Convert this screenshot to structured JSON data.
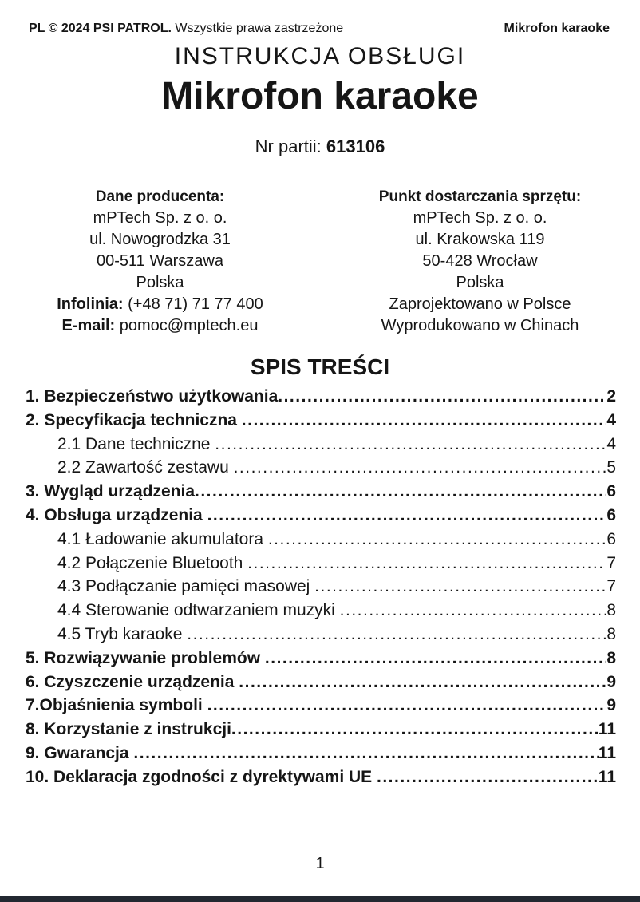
{
  "header": {
    "copyright_bold": "PL © 2024 PSI PATROL.",
    "copyright_rest": "Wszystkie prawa zastrzeżone",
    "product_name": "Mikrofon karaoke"
  },
  "titles": {
    "document_type": "INSTRUKCJA OBSŁUGI",
    "product_title": "Mikrofon karaoke",
    "batch_label": "Nr partii:",
    "batch_value": "613106"
  },
  "manufacturer": {
    "heading": "Dane producenta:",
    "lines": [
      "mPTech Sp. z o. o.",
      "ul. Nowogrodzka 31",
      "00-511 Warszawa",
      "Polska"
    ],
    "hotline_label": "Infolinia:",
    "hotline_value": "(+48 71) 71 77 400",
    "email_label": "E-mail:",
    "email_value": "pomoc@mptech.eu"
  },
  "delivery": {
    "heading": "Punkt dostarczania sprzętu:",
    "lines": [
      "mPTech Sp. z o. o.",
      "ul. Krakowska 119",
      "50-428 Wrocław",
      "Polska",
      "Zaprojektowano w Polsce",
      "Wyprodukowano w Chinach"
    ]
  },
  "toc": {
    "heading": "SPIS TREŚCI",
    "items": [
      {
        "label": "1. Bezpieczeństwo użytkowania",
        "page": "2",
        "level": 1
      },
      {
        "label": "2. Specyfikacja techniczna ",
        "page": "4",
        "level": 1
      },
      {
        "label": "2.1 Dane techniczne ",
        "page": "4",
        "level": 2
      },
      {
        "label": "2.2 Zawartość zestawu ",
        "page": "5",
        "level": 2
      },
      {
        "label": "3. Wygląd urządzenia",
        "page": "6",
        "level": 1
      },
      {
        "label": "4. Obsługa urządzenia ",
        "page": "6",
        "level": 1
      },
      {
        "label": "4.1 Ładowanie akumulatora ",
        "page": "6",
        "level": 2
      },
      {
        "label": "4.2 Połączenie Bluetooth ",
        "page": "7",
        "level": 2
      },
      {
        "label": "4.3 Podłączanie pamięci masowej ",
        "page": "7",
        "level": 2
      },
      {
        "label": "4.4 Sterowanie odtwarzaniem muzyki ",
        "page": "8",
        "level": 2
      },
      {
        "label": "4.5 Tryb karaoke ",
        "page": "8",
        "level": 2
      },
      {
        "label": "5. Rozwiązywanie problemów ",
        "page": "8",
        "level": 1
      },
      {
        "label": "6. Czyszczenie urządzenia ",
        "page": "9",
        "level": 1
      },
      {
        "label": "7.Objaśnienia symboli ",
        "page": "9",
        "level": 1
      },
      {
        "label": "8. Korzystanie z instrukcji",
        "page": "11",
        "level": 1
      },
      {
        "label": "9. Gwarancja ",
        "page": "11",
        "level": 1
      },
      {
        "label": "10. Deklaracja zgodności z dyrektywami UE ",
        "page": "11",
        "level": 1
      }
    ]
  },
  "footer": {
    "page_number": "1"
  },
  "colors": {
    "text": "#161616",
    "footer_bar": "#222831",
    "background": "#ffffff"
  }
}
